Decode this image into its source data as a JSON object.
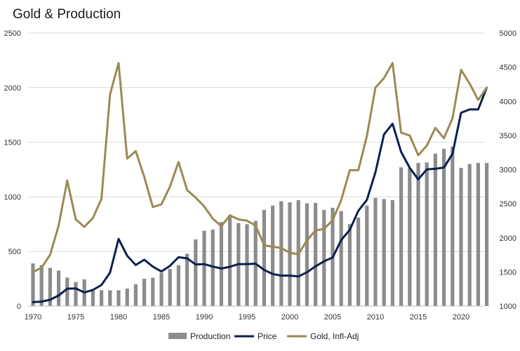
{
  "chart_data": {
    "type": "bar+line",
    "title": "Gold & Production",
    "x": [
      1970,
      1971,
      1972,
      1973,
      1974,
      1975,
      1976,
      1977,
      1978,
      1979,
      1980,
      1981,
      1982,
      1983,
      1984,
      1985,
      1986,
      1987,
      1988,
      1989,
      1990,
      1991,
      1992,
      1993,
      1994,
      1995,
      1996,
      1997,
      1998,
      1999,
      2000,
      2001,
      2002,
      2003,
      2004,
      2005,
      2006,
      2007,
      2008,
      2009,
      2010,
      2011,
      2012,
      2013,
      2014,
      2015,
      2016,
      2017,
      2018,
      2019,
      2020,
      2021,
      2022,
      2023
    ],
    "x_ticks": [
      1970,
      1975,
      1980,
      1985,
      1990,
      1995,
      2000,
      2005,
      2010,
      2015,
      2020
    ],
    "left_axis": {
      "ylim": [
        0,
        2500
      ],
      "ticks": [
        0,
        500,
        1000,
        1500,
        2000,
        2500
      ]
    },
    "right_axis": {
      "ylim": [
        1000,
        5000
      ],
      "ticks": [
        1000,
        1500,
        2000,
        2500,
        3000,
        3500,
        4000,
        4500,
        5000
      ]
    },
    "series": [
      {
        "name": "Production",
        "kind": "bar",
        "axis": "left",
        "color": "#8c8c8c",
        "values": [
          390,
          375,
          350,
          325,
          260,
          220,
          245,
          140,
          145,
          145,
          145,
          160,
          200,
          250,
          260,
          305,
          340,
          375,
          480,
          610,
          690,
          700,
          770,
          820,
          760,
          750,
          780,
          880,
          920,
          960,
          950,
          970,
          940,
          945,
          880,
          900,
          870,
          750,
          810,
          920,
          990,
          980,
          970,
          1270,
          1260,
          1310,
          1315,
          1395,
          1440,
          1460,
          1265,
          1300,
          1310,
          1310
        ]
      },
      {
        "name": "Price",
        "kind": "line",
        "axis": "left",
        "color": "#0d1f4f",
        "values": [
          36,
          41,
          58,
          97,
          159,
          161,
          125,
          148,
          193,
          306,
          615,
          460,
          376,
          424,
          361,
          317,
          368,
          447,
          437,
          381,
          384,
          362,
          344,
          360,
          384,
          384,
          388,
          331,
          294,
          279,
          279,
          271,
          310,
          364,
          410,
          445,
          604,
          697,
          872,
          972,
          1225,
          1572,
          1669,
          1411,
          1266,
          1160,
          1251,
          1257,
          1268,
          1393,
          1770,
          1800,
          1800,
          2000
        ]
      },
      {
        "name": "Gold, Infl-Adj",
        "kind": "line",
        "axis": "right",
        "color": "#9a8a55",
        "values": [
          1500,
          1560,
          1750,
          2180,
          2840,
          2270,
          2160,
          2290,
          2570,
          4100,
          4560,
          3160,
          3270,
          2890,
          2450,
          2490,
          2750,
          3110,
          2700,
          2590,
          2460,
          2280,
          2170,
          2330,
          2270,
          2250,
          2180,
          1890,
          1870,
          1850,
          1780,
          1760,
          1960,
          2110,
          2130,
          2260,
          2550,
          2990,
          2990,
          3490,
          4200,
          4340,
          4560,
          3540,
          3500,
          3210,
          3350,
          3610,
          3460,
          3750,
          4460,
          4260,
          4020,
          4200
        ]
      }
    ],
    "legend": {
      "placement": "bottom",
      "entries": [
        "Production",
        "Price",
        "Gold, Infl-Adj"
      ]
    },
    "grid": {
      "horizontal": true,
      "vertical": false
    }
  }
}
